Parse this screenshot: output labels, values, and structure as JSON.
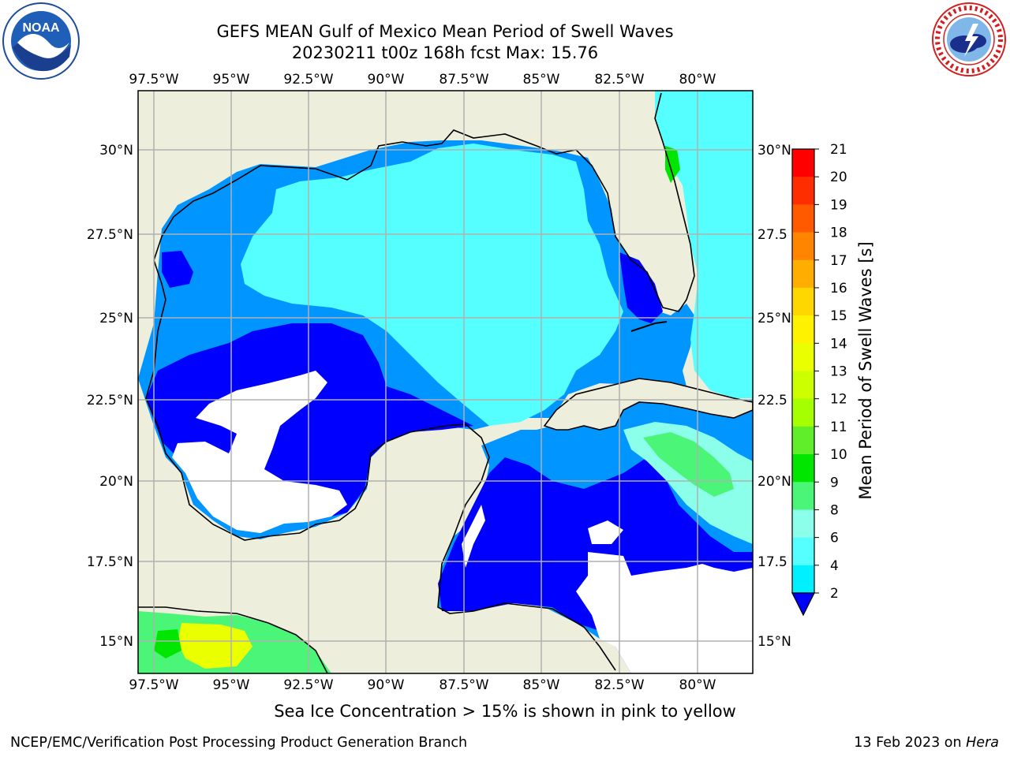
{
  "title": {
    "line1": "GEFS MEAN Gulf of Mexico Mean Period of Swell Waves",
    "line2": "20230211 t00z 168h fcst   Max: 15.76"
  },
  "logos": {
    "noaa": {
      "icon": "noaa-logo-icon",
      "text": "NOAA",
      "ring_text": "NATIONAL OCEANIC AND ATMOSPHERIC ADMINISTRATION · U.S. DEPARTMENT OF COMMERCE"
    },
    "nws": {
      "icon": "nws-logo-icon",
      "ring_text": "NATIONAL WEATHER SERVICE"
    }
  },
  "map": {
    "lon_labels": [
      "97.5°W",
      "95°W",
      "92.5°W",
      "90°W",
      "87.5°W",
      "85°W",
      "82.5°W",
      "80°W"
    ],
    "lat_labels_left": [
      "30°N",
      "27.5°N",
      "25°N",
      "22.5°N",
      "20°N",
      "17.5°N",
      "15°N"
    ],
    "lat_labels_right": [
      "30°N",
      "27.5",
      "25°N",
      "22.5",
      "20°N",
      "17.5",
      "15°N"
    ],
    "colors": {
      "land": "#eeeedc",
      "nodata": "#ffffff",
      "grid": "#b0b0b0",
      "coast": "#000000"
    }
  },
  "colorbar": {
    "label": "Mean Period of Swell Waves [s]",
    "ticks": [
      "21",
      "20",
      "19",
      "18",
      "17",
      "16",
      "15",
      "14",
      "13",
      "12",
      "11",
      "10",
      "9",
      "8",
      "6",
      "4",
      "2"
    ],
    "colors": [
      "#ff0000",
      "#ff2e00",
      "#ff5a00",
      "#ff8500",
      "#ffae00",
      "#ffd700",
      "#fff200",
      "#eaff00",
      "#ccff00",
      "#a5ff00",
      "#60ee2a",
      "#00e600",
      "#4bf577",
      "#8bffea",
      "#55ffff",
      "#00f0ff",
      "#00c4ff",
      "#0095ff",
      "#0000ff"
    ]
  },
  "footnote": "Sea Ice Concentration > 15% is shown in pink to yellow",
  "footer": {
    "left": "NCEP/EMC/Verification Post Processing Product Generation Branch",
    "date": "13 Feb 2023 on ",
    "host": "Hera"
  }
}
